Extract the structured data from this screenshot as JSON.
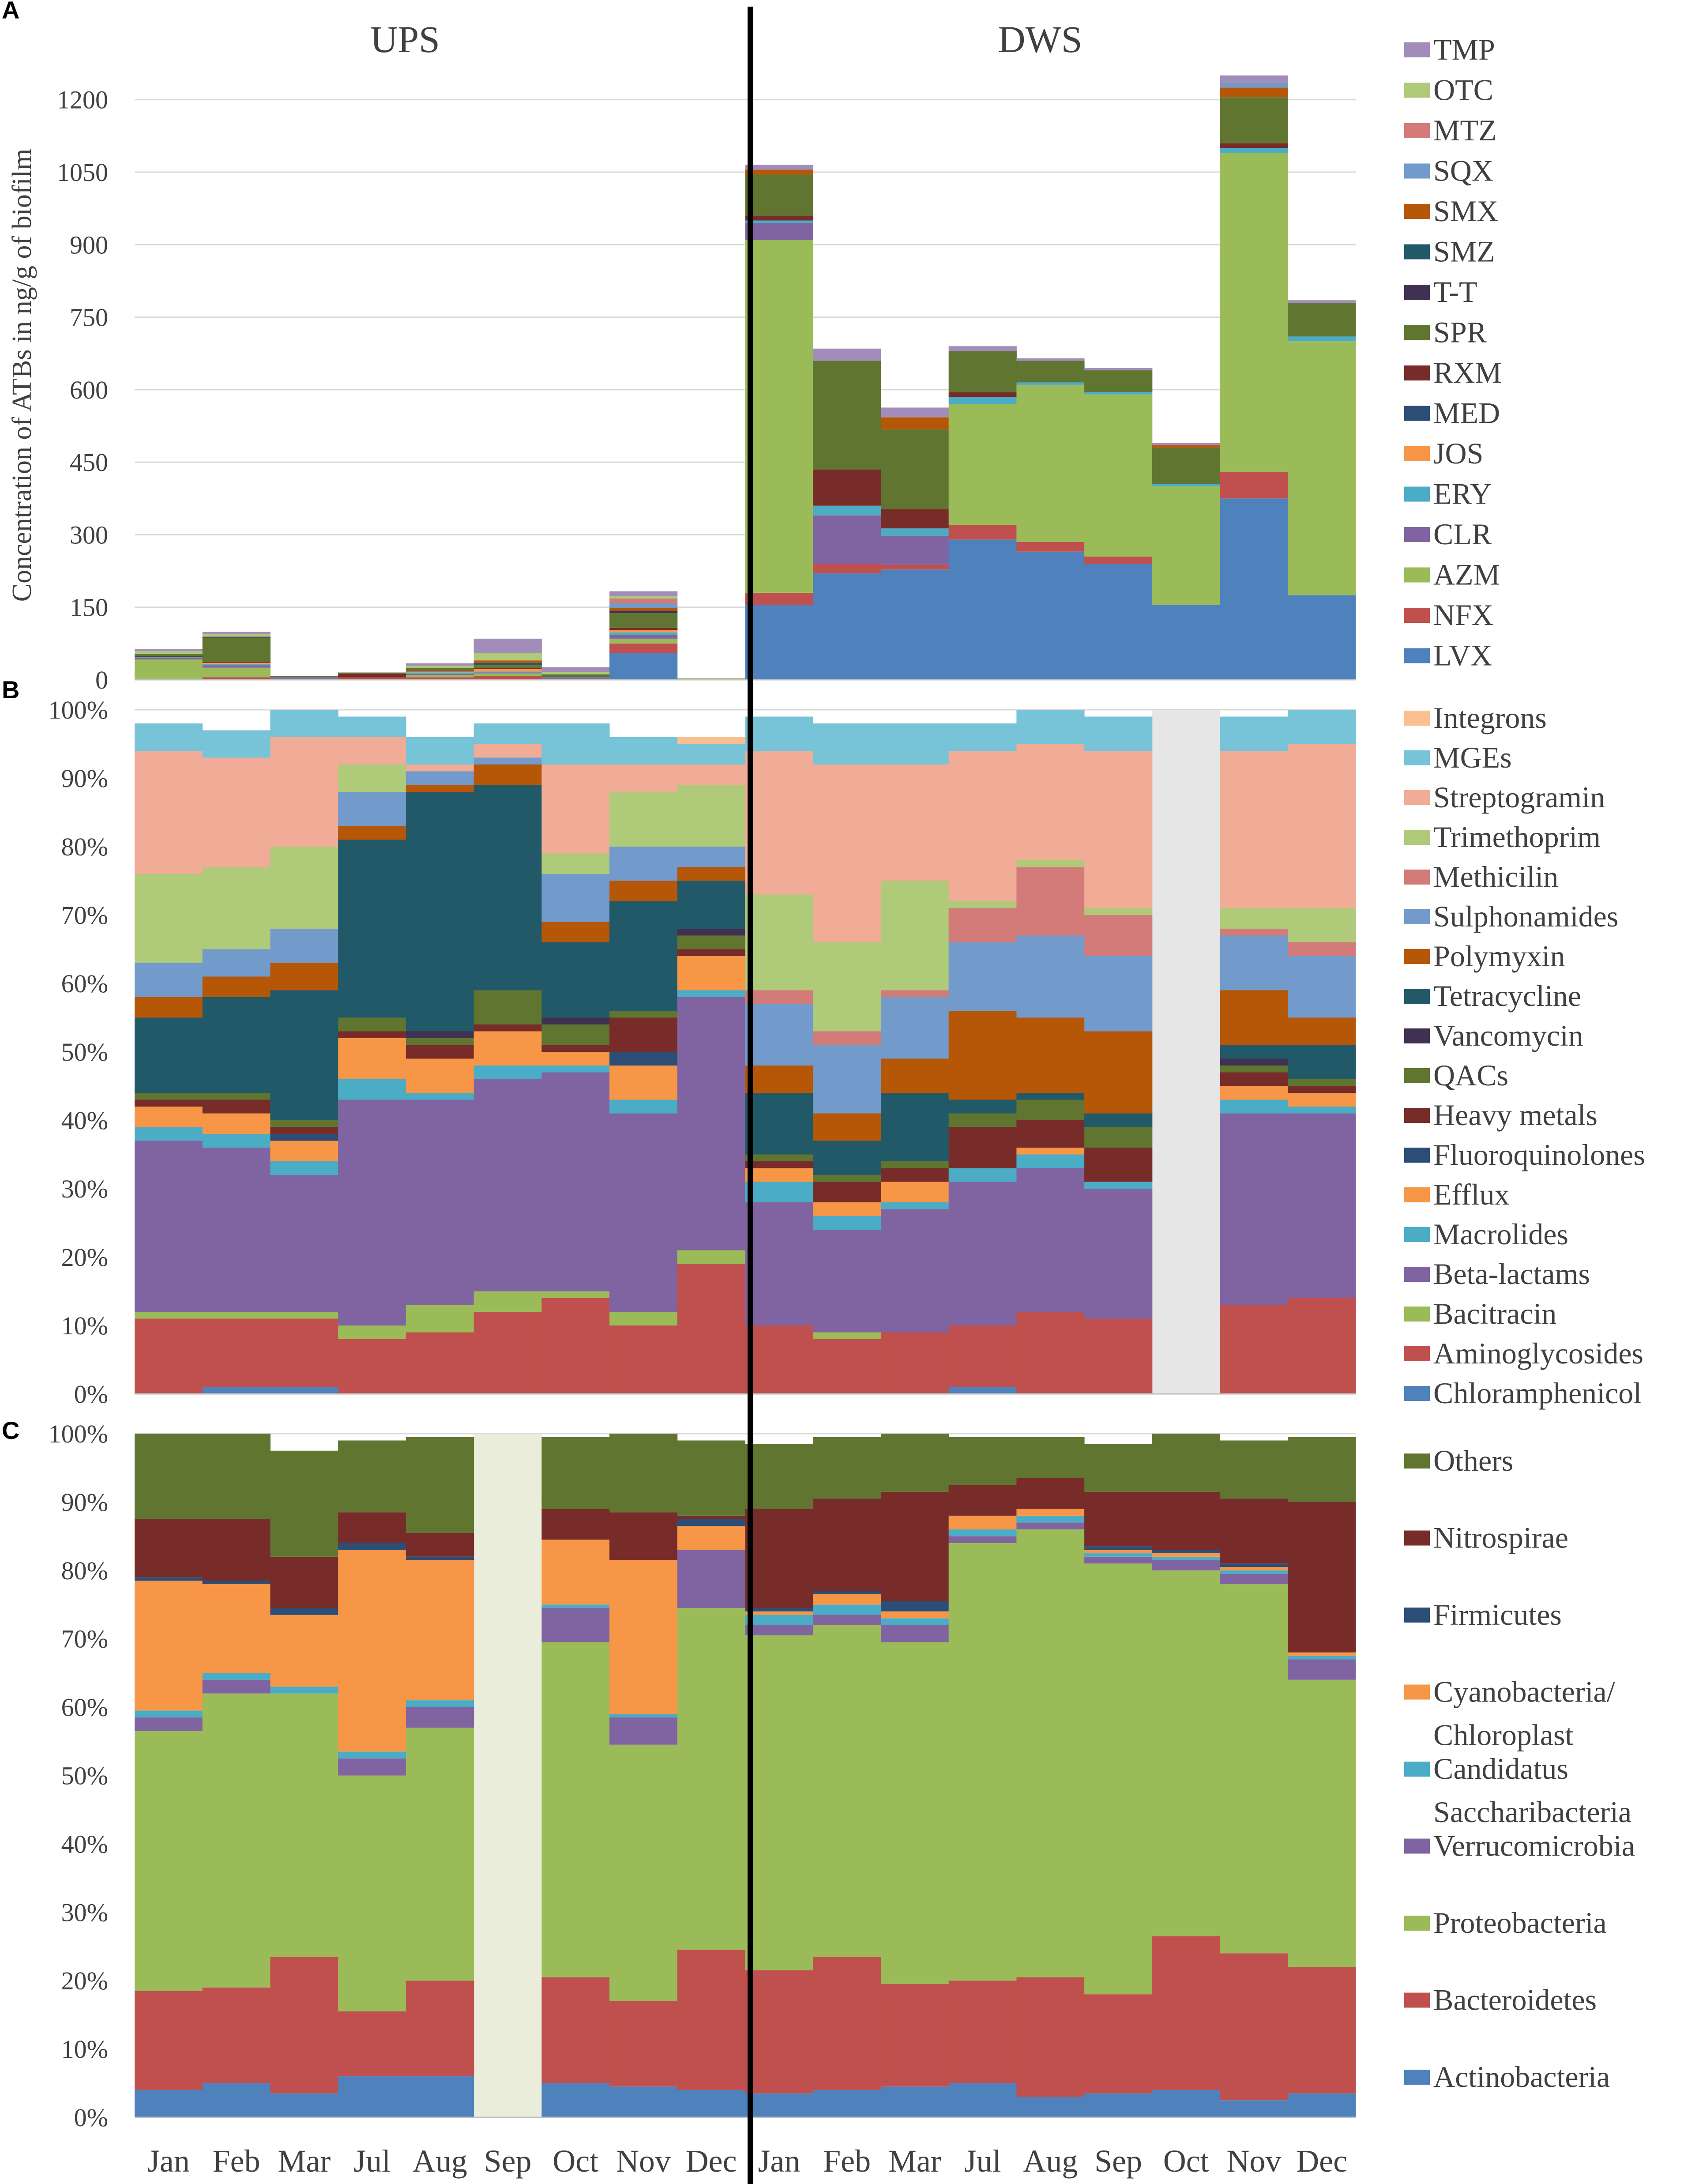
{
  "chart_data": [
    {
      "panel": "A",
      "type": "bar",
      "stacked": true,
      "ylabel": "Concentration of ATBs in ng/g of biofilm",
      "ylim": [
        0,
        1260
      ],
      "yticks": [
        0,
        150,
        300,
        450,
        600,
        750,
        900,
        1050,
        1200
      ],
      "grid": true,
      "group_labels": [
        "UPS",
        "DWS"
      ],
      "categories": [
        "Jan",
        "Feb",
        "Mar",
        "Jul",
        "Aug",
        "Sep",
        "Oct",
        "Nov",
        "Dec",
        "Jan",
        "Feb",
        "Mar",
        "Jul",
        "Aug",
        "Sep",
        "Oct",
        "Nov",
        "Dec"
      ],
      "series": [
        {
          "name": "LVX",
          "color": "#4F81BD",
          "values": [
            0,
            0,
            0,
            0,
            0,
            0,
            0,
            55,
            0,
            155,
            220,
            228,
            290,
            265,
            240,
            155,
            375,
            175
          ]
        },
        {
          "name": "NFX",
          "color": "#C0504D",
          "values": [
            2,
            5,
            2,
            5,
            5,
            8,
            2,
            20,
            0,
            25,
            20,
            10,
            30,
            20,
            15,
            0,
            55,
            0
          ]
        },
        {
          "name": "AZM",
          "color": "#9BBB59",
          "values": [
            40,
            20,
            0,
            0,
            5,
            5,
            0,
            10,
            3,
            730,
            0,
            0,
            250,
            325,
            335,
            245,
            660,
            525
          ]
        },
        {
          "name": "CLR",
          "color": "#8064A2",
          "values": [
            3,
            5,
            2,
            0,
            2,
            2,
            2,
            8,
            0,
            35,
            100,
            60,
            0,
            0,
            0,
            0,
            0,
            0
          ]
        },
        {
          "name": "ERY",
          "color": "#4BACC6",
          "values": [
            2,
            3,
            1,
            0,
            3,
            2,
            1,
            5,
            0,
            5,
            20,
            15,
            15,
            5,
            5,
            5,
            10,
            10
          ]
        },
        {
          "name": "JOS",
          "color": "#F79646",
          "values": [
            0,
            2,
            0,
            0,
            2,
            5,
            0,
            5,
            0,
            0,
            0,
            0,
            0,
            0,
            0,
            0,
            0,
            0
          ]
        },
        {
          "name": "MED",
          "color": "#2C4D75",
          "values": [
            0,
            0,
            0,
            0,
            0,
            0,
            0,
            0,
            0,
            0,
            0,
            0,
            0,
            0,
            0,
            0,
            0,
            0
          ]
        },
        {
          "name": "RXM",
          "color": "#772C2A",
          "values": [
            2,
            2,
            1,
            8,
            2,
            3,
            1,
            5,
            0,
            10,
            75,
            40,
            10,
            0,
            0,
            0,
            10,
            0
          ]
        },
        {
          "name": "SPR",
          "color": "#5F7530",
          "values": [
            5,
            50,
            2,
            2,
            5,
            5,
            5,
            30,
            0,
            85,
            225,
            165,
            85,
            45,
            45,
            75,
            95,
            70
          ]
        },
        {
          "name": "T-T",
          "color": "#403152",
          "values": [
            0,
            2,
            0,
            0,
            0,
            0,
            0,
            5,
            0,
            0,
            0,
            0,
            0,
            0,
            0,
            0,
            0,
            0
          ]
        },
        {
          "name": "SMZ",
          "color": "#215968",
          "values": [
            0,
            0,
            0,
            0,
            0,
            5,
            0,
            0,
            0,
            0,
            0,
            0,
            0,
            0,
            0,
            0,
            0,
            0
          ]
        },
        {
          "name": "SMX",
          "color": "#B65708",
          "values": [
            0,
            0,
            0,
            0,
            0,
            5,
            0,
            5,
            0,
            10,
            0,
            25,
            0,
            0,
            0,
            5,
            20,
            0
          ]
        },
        {
          "name": "SQX",
          "color": "#729ACA",
          "values": [
            0,
            0,
            0,
            0,
            0,
            0,
            0,
            10,
            0,
            0,
            0,
            0,
            0,
            0,
            0,
            0,
            10,
            0
          ]
        },
        {
          "name": "MTZ",
          "color": "#D37B79",
          "values": [
            0,
            0,
            0,
            0,
            0,
            0,
            0,
            10,
            0,
            0,
            0,
            0,
            0,
            0,
            0,
            0,
            0,
            0
          ]
        },
        {
          "name": "OTC",
          "color": "#AFCA78",
          "values": [
            5,
            5,
            0,
            0,
            5,
            15,
            5,
            5,
            0,
            0,
            0,
            0,
            0,
            0,
            0,
            0,
            0,
            0
          ]
        },
        {
          "name": "TMP",
          "color": "#A28DBA",
          "values": [
            5,
            5,
            0,
            0,
            5,
            30,
            10,
            10,
            0,
            10,
            25,
            20,
            10,
            5,
            5,
            5,
            15,
            5
          ]
        }
      ]
    },
    {
      "panel": "B",
      "type": "bar",
      "stacked": true,
      "percent": true,
      "ylim": [
        0,
        100
      ],
      "yticks": [
        "0%",
        "10%",
        "20%",
        "30%",
        "40%",
        "50%",
        "60%",
        "70%",
        "80%",
        "90%",
        "100%"
      ],
      "grid": true,
      "categories": [
        "Jan",
        "Feb",
        "Mar",
        "Jul",
        "Aug",
        "Sep",
        "Oct",
        "Nov",
        "Dec",
        "Jan",
        "Feb",
        "Mar",
        "Jul",
        "Aug",
        "Sep",
        "Oct",
        "Nov",
        "Dec"
      ],
      "missing": [
        15
      ],
      "series": [
        {
          "name": "Chloramphenicol",
          "color": "#4F81BD",
          "values": [
            0,
            1,
            1,
            0,
            0,
            0,
            0,
            0,
            0,
            0,
            0,
            0,
            1,
            0,
            0,
            0,
            0,
            0
          ]
        },
        {
          "name": "Aminoglycosides",
          "color": "#C0504D",
          "values": [
            11,
            10,
            10,
            8,
            9,
            12,
            14,
            10,
            19,
            10,
            8,
            9,
            9,
            12,
            11,
            0,
            13,
            14
          ]
        },
        {
          "name": "Bacitracin",
          "color": "#9BBB59",
          "values": [
            1,
            1,
            1,
            2,
            4,
            3,
            1,
            2,
            2,
            0,
            1,
            0,
            0,
            0,
            0,
            0,
            0,
            0
          ]
        },
        {
          "name": "Beta-lactams",
          "color": "#8064A2",
          "values": [
            25,
            24,
            20,
            33,
            30,
            31,
            32,
            29,
            37,
            18,
            15,
            18,
            21,
            21,
            19,
            0,
            28,
            27
          ]
        },
        {
          "name": "Macrolides",
          "color": "#4BACC6",
          "values": [
            2,
            2,
            2,
            3,
            1,
            2,
            1,
            2,
            1,
            3,
            2,
            1,
            2,
            2,
            1,
            0,
            2,
            1
          ]
        },
        {
          "name": "Efflux",
          "color": "#F79646",
          "values": [
            3,
            3,
            3,
            6,
            5,
            5,
            2,
            5,
            5,
            2,
            2,
            3,
            0,
            1,
            0,
            0,
            2,
            2
          ]
        },
        {
          "name": "Fluoroquinolones",
          "color": "#2C4D75",
          "values": [
            0,
            0,
            1,
            0,
            0,
            0,
            0,
            2,
            0,
            0,
            0,
            0,
            0,
            0,
            0,
            0,
            0,
            0
          ]
        },
        {
          "name": "Heavy metals",
          "color": "#772C2A",
          "values": [
            1,
            2,
            1,
            1,
            2,
            1,
            1,
            5,
            1,
            1,
            3,
            2,
            6,
            4,
            5,
            0,
            2,
            1
          ]
        },
        {
          "name": "QACs",
          "color": "#5F7530",
          "values": [
            1,
            1,
            1,
            2,
            1,
            5,
            3,
            1,
            2,
            1,
            1,
            1,
            2,
            3,
            3,
            0,
            1,
            1
          ]
        },
        {
          "name": "Vancomycin",
          "color": "#403152",
          "values": [
            0,
            0,
            0,
            0,
            1,
            0,
            1,
            0,
            1,
            0,
            0,
            0,
            0,
            0,
            0,
            0,
            1,
            0
          ]
        },
        {
          "name": "Tetracycline",
          "color": "#215968",
          "values": [
            11,
            14,
            19,
            26,
            35,
            30,
            11,
            16,
            7,
            9,
            5,
            10,
            2,
            1,
            2,
            0,
            2,
            5
          ]
        },
        {
          "name": "Polymyxin",
          "color": "#B65708",
          "values": [
            3,
            3,
            4,
            2,
            1,
            3,
            3,
            3,
            2,
            4,
            4,
            5,
            13,
            11,
            12,
            0,
            8,
            4
          ]
        },
        {
          "name": "Sulphonamides",
          "color": "#729ACA",
          "values": [
            5,
            4,
            5,
            5,
            2,
            1,
            7,
            5,
            3,
            9,
            10,
            9,
            10,
            12,
            11,
            0,
            8,
            9
          ]
        },
        {
          "name": "Methicilin",
          "color": "#D37B79",
          "values": [
            0,
            0,
            0,
            0,
            0,
            0,
            0,
            0,
            0,
            2,
            2,
            1,
            5,
            10,
            6,
            0,
            1,
            2
          ]
        },
        {
          "name": "Trimethoprim",
          "color": "#AFCA78",
          "values": [
            13,
            12,
            12,
            4,
            0,
            0,
            3,
            8,
            9,
            14,
            13,
            16,
            1,
            1,
            1,
            0,
            3,
            5
          ]
        },
        {
          "name": "Streptogramin",
          "color": "#F0AC97",
          "values": [
            18,
            16,
            16,
            4,
            1,
            2,
            13,
            4,
            3,
            21,
            26,
            17,
            22,
            17,
            23,
            0,
            23,
            24
          ]
        },
        {
          "name": "MGEs",
          "color": "#77C3D8",
          "values": [
            4,
            4,
            4,
            3,
            4,
            3,
            6,
            4,
            3,
            5,
            6,
            6,
            4,
            5,
            5,
            0,
            5,
            5
          ]
        },
        {
          "name": "Integrons",
          "color": "#FAC090",
          "values": [
            0,
            0,
            0,
            0,
            0,
            0,
            0,
            0,
            1,
            0,
            0,
            0,
            0,
            0,
            0,
            0,
            0,
            0
          ]
        }
      ]
    },
    {
      "panel": "C",
      "type": "bar",
      "stacked": true,
      "percent": true,
      "ylim": [
        0,
        100
      ],
      "yticks": [
        "0%",
        "10%",
        "20%",
        "30%",
        "40%",
        "50%",
        "60%",
        "70%",
        "80%",
        "90%",
        "100%"
      ],
      "grid": true,
      "categories": [
        "Jan",
        "Feb",
        "Mar",
        "Jul",
        "Aug",
        "Sep",
        "Oct",
        "Nov",
        "Dec",
        "Jan",
        "Feb",
        "Mar",
        "Jul",
        "Aug",
        "Sep",
        "Oct",
        "Nov",
        "Dec"
      ],
      "missing": [
        5
      ],
      "series": [
        {
          "name": "Actinobacteria",
          "color": "#4F81BD",
          "values": [
            4,
            5,
            3.5,
            6,
            6,
            0,
            5,
            4.5,
            4,
            3.5,
            4,
            4.5,
            5,
            3,
            3.5,
            4,
            2.5,
            3.5
          ]
        },
        {
          "name": "Bacteroidetes",
          "color": "#C0504D",
          "values": [
            14.5,
            14,
            20,
            9.5,
            14,
            0,
            15.5,
            12.5,
            20.5,
            18,
            19.5,
            15,
            15,
            17.5,
            14.5,
            22.5,
            21.5,
            18.5
          ]
        },
        {
          "name": "Proteobacteria",
          "color": "#9BBB59",
          "values": [
            38,
            43,
            38.5,
            34.5,
            37,
            0,
            49,
            37.5,
            50,
            49,
            48.5,
            50,
            64,
            65.5,
            63,
            53.5,
            54,
            42
          ]
        },
        {
          "name": "Verrucomicrobia",
          "color": "#8064A2",
          "values": [
            2,
            2,
            0,
            2.5,
            3,
            0,
            5,
            4,
            8.5,
            1.5,
            1.5,
            2.5,
            1,
            1,
            1,
            1.5,
            1.5,
            3
          ]
        },
        {
          "name": "Candidatus Saccharibacteria",
          "color": "#4BACC6",
          "values": [
            1,
            1,
            1,
            1,
            1,
            0,
            0.5,
            0.5,
            0,
            1.5,
            1.5,
            1,
            1,
            1,
            0.5,
            0.5,
            0.5,
            0.5
          ]
        },
        {
          "name": "Cyanobacteria/ Chloroplast",
          "color": "#F79646",
          "values": [
            19,
            13,
            10.5,
            29.5,
            20.5,
            0,
            9.5,
            22.5,
            3.5,
            0.5,
            1.5,
            1,
            2,
            1,
            0.5,
            0.5,
            0.5,
            0.5
          ]
        },
        {
          "name": "Firmicutes",
          "color": "#2C4D75",
          "values": [
            0.5,
            0.5,
            1,
            1,
            0.5,
            0,
            0,
            0,
            1,
            0.5,
            0.5,
            1.5,
            0,
            0,
            0.5,
            0.5,
            0.5,
            0
          ]
        },
        {
          "name": "Nitrospirae",
          "color": "#772C2A",
          "values": [
            8.5,
            9,
            7.5,
            4.5,
            3.5,
            0,
            4.5,
            7,
            0.5,
            14.5,
            13.5,
            16,
            4.5,
            4.5,
            8,
            8.5,
            9.5,
            22
          ]
        },
        {
          "name": "Others",
          "color": "#5F7530",
          "values": [
            12.5,
            12.5,
            15.5,
            10.5,
            14,
            0,
            10.5,
            11.5,
            11,
            9.5,
            9,
            8.5,
            7,
            6,
            7,
            8.5,
            8.5,
            9.5
          ]
        }
      ]
    }
  ],
  "labels": {
    "panel_a": "A",
    "panel_b": "B",
    "panel_c": "C"
  }
}
